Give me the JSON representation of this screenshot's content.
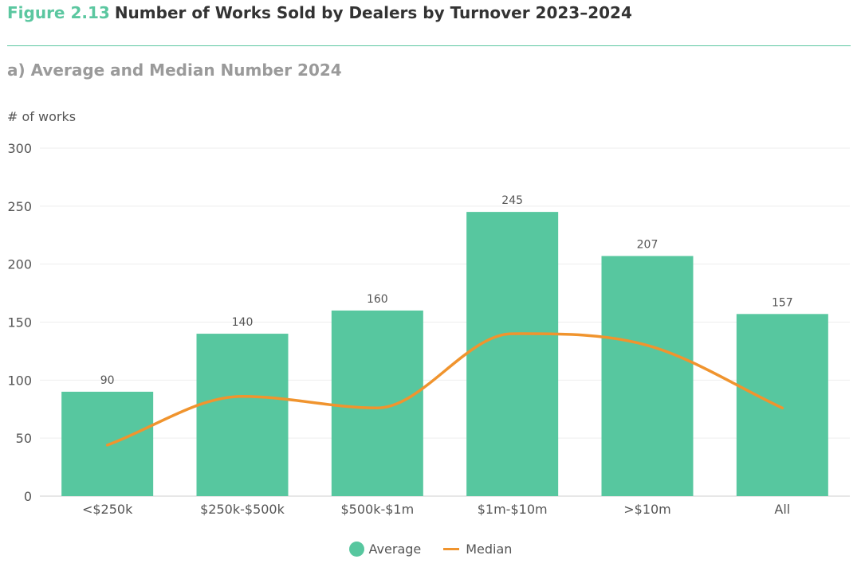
{
  "figure": {
    "number": "Figure 2.13",
    "title": "Number of Works Sold by Dealers by Turnover 2023–2024",
    "subtitle": "a) Average and Median Number 2024"
  },
  "chart_data": {
    "type": "bar",
    "title": "a) Average and Median Number 2024",
    "ylabel": "# of works",
    "xlabel": "",
    "ylim": [
      0,
      300
    ],
    "yticks": [
      0,
      50,
      100,
      150,
      200,
      250,
      300
    ],
    "categories": [
      "<$250k",
      "$250k-$500k",
      "$500k-$1m",
      "$1m-$10m",
      ">$10m",
      "All"
    ],
    "series": [
      {
        "name": "Average",
        "kind": "bar",
        "color": "#57c79f",
        "values": [
          90,
          140,
          160,
          245,
          207,
          157
        ],
        "labels": [
          "90",
          "140",
          "160",
          "245",
          "207",
          "157"
        ]
      },
      {
        "name": "Median",
        "kind": "line",
        "color": "#f0942e",
        "values": [
          44,
          86,
          76,
          140,
          130,
          76
        ]
      }
    ],
    "legend": "bottom-center",
    "grid": true
  }
}
